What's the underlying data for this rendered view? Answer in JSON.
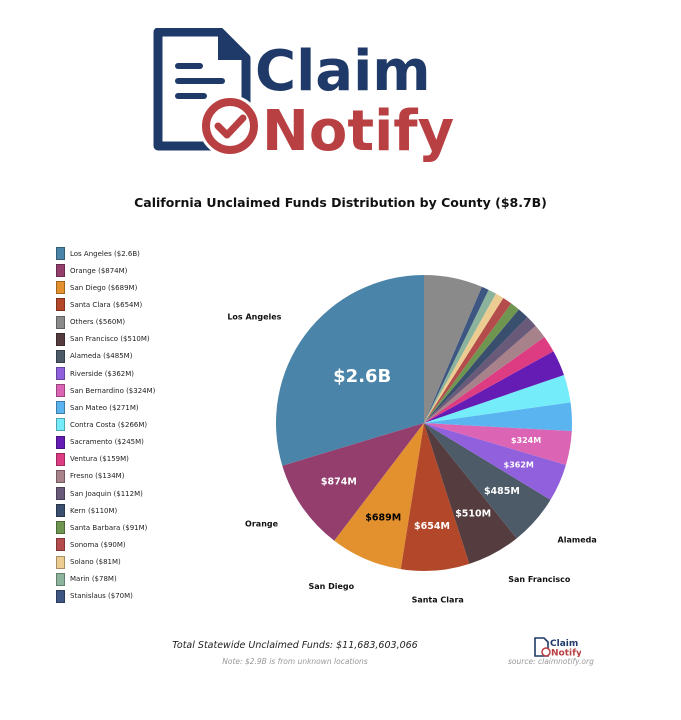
{
  "logo": {
    "line1": "Claim",
    "line2": "Notify",
    "navy": "#1f3a68",
    "red": "#b84042"
  },
  "footer": {
    "total": "Total Statewide Unclaimed Funds: $11,683,603,066",
    "note": "Note: $2.9B is from unknown locations",
    "source": "source: claimnotify.org"
  },
  "chart_data": {
    "type": "pie",
    "title": "California Unclaimed Funds Distribution by County ($8.7B)",
    "legend_position": "left",
    "start_angle": "top",
    "direction": "counterclockwise",
    "slices": [
      {
        "name": "Los Angeles",
        "value": 2600,
        "legend": "Los Angeles ($2.6B)",
        "label": "$2.6B",
        "outer": "Los Angeles",
        "color": "#4a84a8"
      },
      {
        "name": "Orange",
        "value": 874,
        "legend": "Orange ($874M)",
        "label": "$874M",
        "outer": "Orange",
        "color": "#943e6e"
      },
      {
        "name": "San Diego",
        "value": 689,
        "legend": "San Diego ($689M)",
        "label": "$689M",
        "outer": "San Diego",
        "color": "#e3912f"
      },
      {
        "name": "Santa Clara",
        "value": 654,
        "legend": "Santa Clara ($654M)",
        "label": "$654M",
        "outer": "Santa Clara",
        "color": "#b3472a"
      },
      {
        "name": "Others",
        "value": 560,
        "legend": "Others ($560M)",
        "label": "",
        "outer": "",
        "color": "#8a8a8a"
      },
      {
        "name": "San Francisco",
        "value": 510,
        "legend": "San Francisco ($510M)",
        "label": "$510M",
        "outer": "San Francisco",
        "color": "#553d3f"
      },
      {
        "name": "Alameda",
        "value": 485,
        "legend": "Alameda ($485M)",
        "label": "$485M",
        "outer": "Alameda",
        "color": "#4d5a68"
      },
      {
        "name": "Riverside",
        "value": 362,
        "legend": "Riverside ($362M)",
        "label": "$362M",
        "outer": "",
        "color": "#9060dd"
      },
      {
        "name": "San Bernardino",
        "value": 324,
        "legend": "San Bernardino ($324M)",
        "label": "$324M",
        "outer": "",
        "color": "#dc64b4"
      },
      {
        "name": "San Mateo",
        "value": 271,
        "legend": "San Mateo ($271M)",
        "label": "",
        "outer": "",
        "color": "#5ab4f0"
      },
      {
        "name": "Contra Costa",
        "value": 266,
        "legend": "Contra Costa ($266M)",
        "label": "",
        "outer": "",
        "color": "#74ecfa"
      },
      {
        "name": "Sacramento",
        "value": 245,
        "legend": "Sacramento ($245M)",
        "label": "",
        "outer": "",
        "color": "#641cb4"
      },
      {
        "name": "Ventura",
        "value": 159,
        "legend": "Ventura ($159M)",
        "label": "",
        "outer": "",
        "color": "#de3c82"
      },
      {
        "name": "Fresno",
        "value": 134,
        "legend": "Fresno ($134M)",
        "label": "",
        "outer": "",
        "color": "#a8828a"
      },
      {
        "name": "San Joaquin",
        "value": 112,
        "legend": "San Joaquin ($112M)",
        "label": "",
        "outer": "",
        "color": "#6a5a7a"
      },
      {
        "name": "Kern",
        "value": 110,
        "legend": "Kern ($110M)",
        "label": "",
        "outer": "",
        "color": "#3a4e6e"
      },
      {
        "name": "Santa Barbara",
        "value": 91,
        "legend": "Santa Barbara ($91M)",
        "label": "",
        "outer": "",
        "color": "#6e9650"
      },
      {
        "name": "Sonoma",
        "value": 90,
        "legend": "Sonoma ($90M)",
        "label": "",
        "outer": "",
        "color": "#b44c4c"
      },
      {
        "name": "Solano",
        "value": 81,
        "legend": "Solano ($81M)",
        "label": "",
        "outer": "",
        "color": "#eccc90"
      },
      {
        "name": "Marin",
        "value": 78,
        "legend": "Marin ($78M)",
        "label": "",
        "outer": "",
        "color": "#8cb49c"
      },
      {
        "name": "Stanislaus",
        "value": 70,
        "legend": "Stanislaus ($70M)",
        "label": "",
        "outer": "",
        "color": "#3e5682"
      }
    ]
  }
}
